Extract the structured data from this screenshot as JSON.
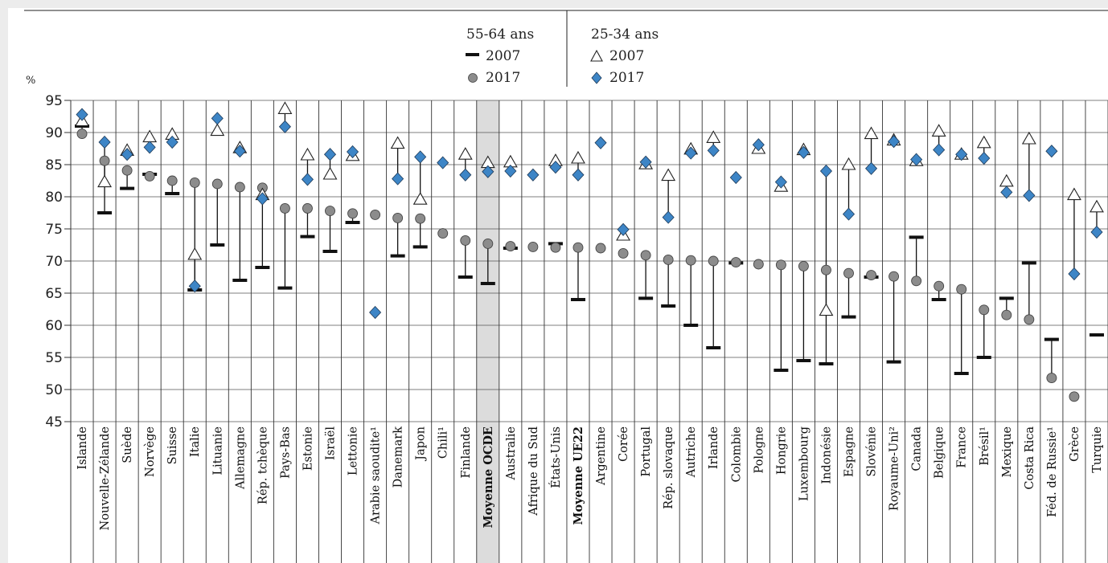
{
  "chart_data": {
    "type": "scatter",
    "ylabel": "%",
    "ylim": [
      45,
      95
    ],
    "yticks": [
      45,
      50,
      55,
      60,
      65,
      70,
      75,
      80,
      85,
      90,
      95
    ],
    "grid": "horizontal",
    "legend_position": "top-center",
    "legend": {
      "group_a": {
        "title": "55-64 ans",
        "items": [
          "2007",
          "2017"
        ]
      },
      "group_b": {
        "title": "25-34 ans",
        "items": [
          "2007",
          "2017"
        ]
      }
    },
    "highlighted_categories": [
      "Moyenne OCDE"
    ],
    "bold_categories": [
      "Moyenne OCDE",
      "Moyenne UE22"
    ],
    "categories": [
      "Islande",
      "Nouvelle-Zélande",
      "Suède",
      "Norvège",
      "Suisse",
      "Italie",
      "Lituanie",
      "Allemagne",
      "Rép. tchèque",
      "Pays-Bas",
      "Estonie",
      "Israël",
      "Lettonie",
      "Arabie saoudite¹",
      "Danemark",
      "Japon",
      "Chili¹",
      "Finlande",
      "Moyenne OCDE",
      "Australie",
      "Afrique du Sud",
      "États-Unis",
      "Moyenne UE22",
      "Argentine",
      "Corée",
      "Portugal",
      "Rép. slovaque",
      "Autriche",
      "Irlande",
      "Colombie",
      "Pologne",
      "Hongrie",
      "Luxembourg",
      "Indonésie",
      "Espagne",
      "Slovénie",
      "Royaume-Uni²",
      "Canada",
      "Belgique",
      "France",
      "Brésil¹",
      "Mexique",
      "Costa Rica",
      "Féd. de Russie¹",
      "Grèce",
      "Turquie"
    ],
    "series": [
      {
        "name": "55-64 ans 2007",
        "marker": "dash",
        "color": "#111111",
        "values": [
          91,
          77.5,
          81.3,
          83.5,
          80.5,
          65.5,
          72.5,
          67,
          69,
          65.8,
          73.8,
          71.5,
          76,
          null,
          70.8,
          72.2,
          null,
          67.5,
          66.5,
          72,
          null,
          72.7,
          64,
          null,
          null,
          64.2,
          63,
          60,
          56.5,
          69.7,
          null,
          53,
          54.5,
          54,
          61.3,
          67.5,
          54.3,
          73.7,
          64,
          52.5,
          55,
          64.2,
          69.7,
          57.8,
          null,
          58.5
        ]
      },
      {
        "name": "55-64 ans 2017",
        "marker": "circle",
        "color": "#8c8c8c",
        "values": [
          89.8,
          85.6,
          84.1,
          83.2,
          82.5,
          82.2,
          82,
          81.5,
          81.4,
          78.2,
          78.2,
          77.8,
          77.4,
          77.2,
          76.7,
          76.6,
          74.3,
          73.2,
          72.7,
          72.3,
          72.2,
          72.1,
          72.1,
          72,
          71.2,
          70.9,
          70.2,
          70.1,
          70,
          69.8,
          69.5,
          69.4,
          69.2,
          68.6,
          68.1,
          67.8,
          67.6,
          66.9,
          66.1,
          65.6,
          62.4,
          61.6,
          60.9,
          51.8,
          48.9,
          null
        ]
      },
      {
        "name": "25-34 ans 2007",
        "marker": "triangle",
        "color": "#ffffff",
        "values": [
          91.8,
          82.3,
          87.2,
          89.3,
          89.7,
          71,
          90.3,
          87.6,
          80.3,
          93.7,
          86.5,
          83.5,
          86.4,
          null,
          88.3,
          79.6,
          null,
          86.6,
          85.3,
          85.4,
          null,
          85.6,
          86,
          null,
          74,
          85.1,
          83.3,
          87.4,
          89.2,
          null,
          87.5,
          81.6,
          87.3,
          62.3,
          85,
          89.8,
          88.8,
          85.6,
          90.2,
          86.6,
          88.4,
          82.4,
          89,
          null,
          80.3,
          78.4
        ]
      },
      {
        "name": "25-34 ans 2017",
        "marker": "diamond",
        "color": "#3d85c6",
        "values": [
          92.8,
          88.5,
          86.6,
          87.7,
          88.5,
          66.1,
          92.2,
          87.1,
          79.7,
          90.9,
          82.7,
          86.6,
          87,
          62,
          82.8,
          86.2,
          85.3,
          83.4,
          83.9,
          84,
          83.4,
          84.6,
          83.4,
          88.4,
          74.9,
          85.4,
          76.8,
          86.8,
          87.2,
          83,
          88.1,
          82.3,
          86.9,
          84,
          77.3,
          84.4,
          88.6,
          85.8,
          87.3,
          86.6,
          86,
          80.7,
          80.2,
          87.1,
          68,
          74.5
        ]
      }
    ]
  }
}
